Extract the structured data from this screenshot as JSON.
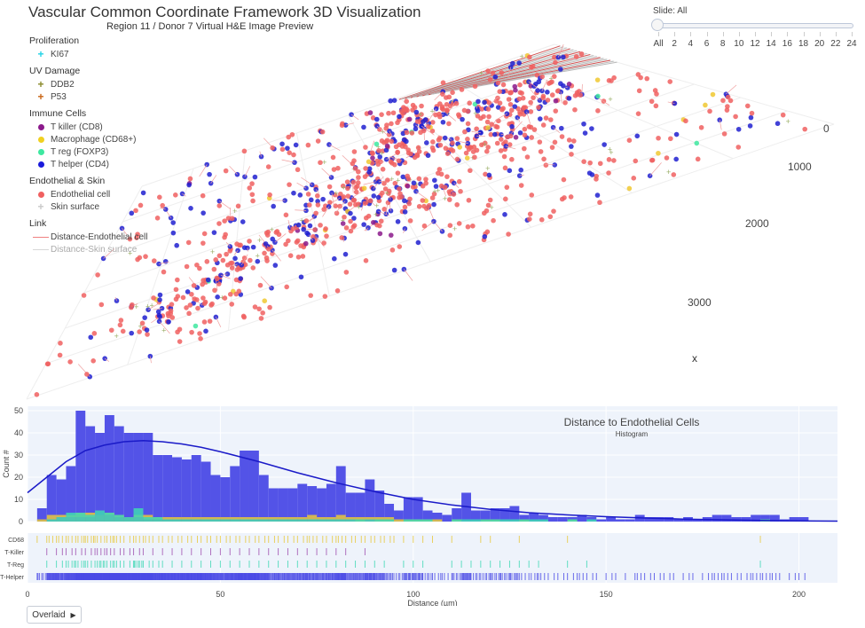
{
  "header": {
    "title": "Vascular Common Coordinate Framework 3D Visualization",
    "subtitle": "Region 11 / Donor 7  Virtual H&E Image Preview"
  },
  "slider": {
    "label": "Slide: All",
    "ticks": [
      "All",
      "2",
      "4",
      "6",
      "8",
      "10",
      "12",
      "14",
      "16",
      "18",
      "20",
      "22",
      "24"
    ],
    "value": "All"
  },
  "legend": [
    {
      "title": "Proliferation",
      "items": [
        {
          "label": "KI67",
          "marker": "plus",
          "color": "#22d3e6"
        }
      ]
    },
    {
      "title": "UV Damage",
      "items": [
        {
          "label": "DDB2",
          "marker": "plus",
          "color": "#8a8a2a"
        },
        {
          "label": "P53",
          "marker": "plus",
          "color": "#c86414"
        }
      ]
    },
    {
      "title": "Immune Cells",
      "items": [
        {
          "label": "T killer (CD8)",
          "marker": "dot",
          "color": "#8b1a8b"
        },
        {
          "label": "Macrophage (CD68+)",
          "marker": "dot",
          "color": "#f0d020"
        },
        {
          "label": "T reg (FOXP3)",
          "marker": "dot",
          "color": "#3ee8a0"
        },
        {
          "label": "T helper (CD4)",
          "marker": "dot",
          "color": "#1a1adb"
        }
      ]
    },
    {
      "title": "Endothelial & Skin",
      "items": [
        {
          "label": "Endothelial cell",
          "marker": "dot",
          "color": "#f06060"
        },
        {
          "label": "Skin surface",
          "marker": "plus",
          "color": "#c8c8c8"
        }
      ]
    },
    {
      "title": "Link",
      "items": [
        {
          "label": "Distance-Endothelial cell",
          "marker": "line",
          "color": "#f08080"
        },
        {
          "label": "Distance-Skin surface",
          "marker": "line",
          "color": "#d8d8d8"
        }
      ]
    }
  ],
  "scene": {
    "axis_ticks": [
      "0",
      "1000",
      "2000",
      "3000"
    ],
    "axis_title": "x"
  },
  "overlaid_button": {
    "label": "Overlaid",
    "icon": "play-icon"
  },
  "chart_data": {
    "type": "bar",
    "title": "Distance to Endothelial Cells",
    "subtitle": "Histogram",
    "ylabel": "Count #",
    "xlabel": "Distance (µm)",
    "xlim": [
      0,
      210
    ],
    "ylim": [
      0,
      52
    ],
    "xticks": [
      0,
      50,
      100,
      150,
      200
    ],
    "yticks": [
      0,
      10,
      20,
      30,
      40,
      50
    ],
    "bin_width": 2.5,
    "bin_start": 2.5,
    "series": [
      {
        "name": "T-Helper",
        "color": "#4a4ae6",
        "values": [
          6,
          21,
          19,
          25,
          50,
          43,
          40,
          48,
          43,
          40,
          40,
          40,
          30,
          30,
          29,
          28,
          30,
          27,
          21,
          20,
          25,
          32,
          32,
          21,
          15,
          15,
          15,
          17,
          16,
          15,
          17,
          25,
          13,
          13,
          19,
          14,
          8,
          5,
          11,
          11,
          5,
          4,
          3,
          6,
          13,
          5,
          5,
          6,
          6,
          7,
          3,
          4,
          3,
          2,
          2,
          2,
          3,
          2,
          1,
          2,
          1,
          1,
          3,
          2,
          2,
          2,
          1,
          2,
          1,
          2,
          3,
          3,
          2,
          2,
          3,
          3,
          3,
          1,
          2,
          2
        ]
      },
      {
        "name": "CD68",
        "color": "#e8c83a",
        "values": [
          1,
          3,
          3,
          3,
          4,
          4,
          3,
          4,
          3,
          2,
          3,
          3,
          2,
          2,
          2,
          2,
          2,
          2,
          2,
          2,
          2,
          2,
          2,
          2,
          2,
          2,
          2,
          2,
          3,
          2,
          2,
          3,
          2,
          2,
          2,
          2,
          2,
          1,
          1,
          1,
          1,
          1,
          0,
          1,
          0,
          0,
          1,
          1,
          0,
          0,
          1,
          0,
          0,
          0,
          0,
          1,
          0,
          0,
          0,
          0,
          0,
          0,
          0,
          0,
          0,
          0,
          0,
          0,
          0,
          0,
          0,
          0,
          0,
          0,
          0,
          1,
          0,
          0,
          0,
          0
        ]
      },
      {
        "name": "T-Killer",
        "color": "#a050b0",
        "values": [
          0,
          1,
          2,
          2,
          2,
          2,
          3,
          3,
          2,
          2,
          2,
          1,
          1,
          1,
          1,
          1,
          1,
          1,
          1,
          1,
          1,
          1,
          1,
          1,
          1,
          1,
          1,
          1,
          1,
          1,
          1,
          1,
          1,
          0,
          1,
          0,
          0,
          0,
          0,
          0,
          0,
          0,
          0,
          0,
          0,
          0,
          0,
          0,
          0,
          0,
          0,
          0,
          0,
          0,
          0,
          0,
          0,
          0,
          0,
          0,
          0,
          0,
          0,
          0,
          0,
          0,
          0,
          0,
          0,
          0,
          0,
          0,
          0,
          0,
          0,
          0,
          0,
          0,
          0,
          0
        ]
      },
      {
        "name": "T-Reg",
        "color": "#3ed8b4",
        "values": [
          0,
          1,
          2,
          4,
          4,
          3,
          5,
          4,
          3,
          2,
          6,
          2,
          2,
          1,
          1,
          1,
          1,
          1,
          1,
          1,
          1,
          1,
          1,
          1,
          1,
          1,
          1,
          1,
          1,
          1,
          1,
          1,
          1,
          1,
          1,
          1,
          1,
          0,
          1,
          1,
          1,
          0,
          0,
          1,
          1,
          1,
          1,
          1,
          1,
          1,
          1,
          1,
          1,
          0,
          0,
          1,
          0,
          1,
          0,
          0,
          0,
          0,
          0,
          0,
          0,
          0,
          0,
          0,
          0,
          0,
          0,
          0,
          0,
          0,
          0,
          1,
          0,
          0,
          0,
          0
        ]
      }
    ],
    "density_curve": {
      "name": "T-Helper density",
      "color": "#1a1ac8",
      "x": [
        0,
        5,
        10,
        15,
        20,
        25,
        30,
        35,
        40,
        45,
        50,
        60,
        70,
        80,
        90,
        100,
        110,
        120,
        130,
        140,
        150,
        160,
        170,
        180,
        190,
        200,
        210
      ],
      "y": [
        13,
        20,
        27,
        32,
        34.5,
        36,
        36.5,
        36,
        35,
        33.5,
        31.5,
        27,
        22,
        17.5,
        13.5,
        10,
        7.5,
        5.5,
        4,
        3,
        2.2,
        1.6,
        1.1,
        0.8,
        0.5,
        0.3,
        0.2
      ]
    },
    "rug": {
      "rows": [
        "CD68",
        "T-Killer",
        "T-Reg",
        "T-Helper"
      ],
      "colors": [
        "#e8c83a",
        "#a050b0",
        "#3ed8b4",
        "#4a4ae6"
      ]
    }
  }
}
